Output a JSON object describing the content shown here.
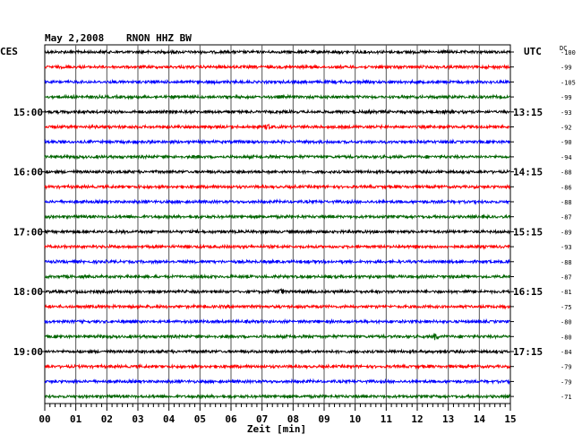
{
  "header": {
    "date": "May 2,2008",
    "station": "RNON HHZ BW",
    "left_tz": "CES",
    "right_tz": "UTC",
    "dc_label": "DC"
  },
  "chart_data": {
    "type": "line",
    "title": "May 2,2008   RNON HHZ BW",
    "xlabel": "Zeit [min]",
    "xlim": [
      0,
      15
    ],
    "x_ticks": [
      "00",
      "01",
      "02",
      "03",
      "04",
      "05",
      "06",
      "07",
      "08",
      "09",
      "10",
      "11",
      "12",
      "13",
      "14",
      "15"
    ],
    "grid": true,
    "trace_colors": [
      "#000000",
      "#ff0000",
      "#0000ff",
      "#006400"
    ],
    "left_time_labels": [
      {
        "row": 4,
        "label": "15:00"
      },
      {
        "row": 8,
        "label": "16:00"
      },
      {
        "row": 12,
        "label": "17:00"
      },
      {
        "row": 16,
        "label": "18:00"
      },
      {
        "row": 20,
        "label": "19:00"
      }
    ],
    "right_time_labels": [
      {
        "row": 4,
        "label": "13:15"
      },
      {
        "row": 8,
        "label": "14:15"
      },
      {
        "row": 12,
        "label": "15:15"
      },
      {
        "row": 16,
        "label": "16:15"
      },
      {
        "row": 20,
        "label": "17:15"
      }
    ],
    "dc_offsets": [
      "-100",
      "-99",
      "-105",
      "-99",
      "-93",
      "-92",
      "-90",
      "-94",
      "-88",
      "-86",
      "-88",
      "-87",
      "-89",
      "-93",
      "-88",
      "-87",
      "-81",
      "-75",
      "-80",
      "-80",
      "-84",
      "-79",
      "-79",
      "-71"
    ],
    "events": [
      {
        "row": 5,
        "minute": 7.2,
        "amplitude": 4
      },
      {
        "row": 16,
        "minute": 7.6,
        "amplitude": 3
      },
      {
        "row": 19,
        "minute": 12.6,
        "amplitude": 4
      }
    ]
  }
}
